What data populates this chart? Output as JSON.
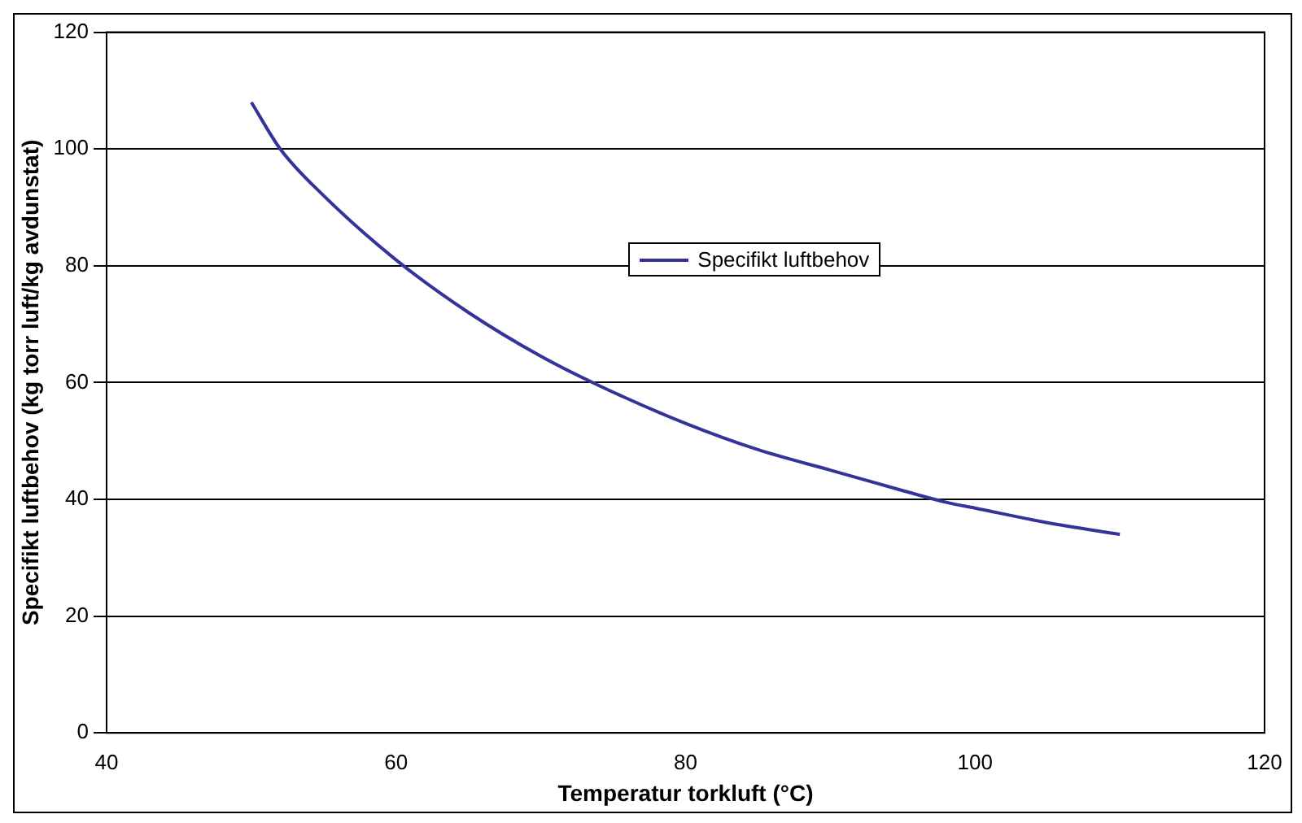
{
  "chart_data": {
    "type": "line",
    "xlabel": "Temperatur torkluft (°C)",
    "ylabel": "Specifikt luftbehov (kg torr luft/kg avdunstat)",
    "xlim": [
      40,
      120
    ],
    "xticks": [
      40,
      60,
      80,
      100,
      120
    ],
    "ylim": [
      0,
      120
    ],
    "yticks": [
      0,
      20,
      40,
      60,
      80,
      100,
      120
    ],
    "grid": "y",
    "legend": "top",
    "marker": "none",
    "line_style": "solid",
    "series": [
      {
        "name": "Specifikt luftbehov",
        "color": "#333399",
        "x": [
          50,
          52,
          55,
          60,
          65,
          70,
          74,
          80,
          85,
          90,
          95,
          98,
          100,
          105,
          110
        ],
        "values": [
          108,
          100,
          92,
          81,
          72,
          64.5,
          59.5,
          53,
          48.5,
          45,
          41.5,
          39.5,
          38.5,
          36,
          34
        ]
      }
    ]
  }
}
